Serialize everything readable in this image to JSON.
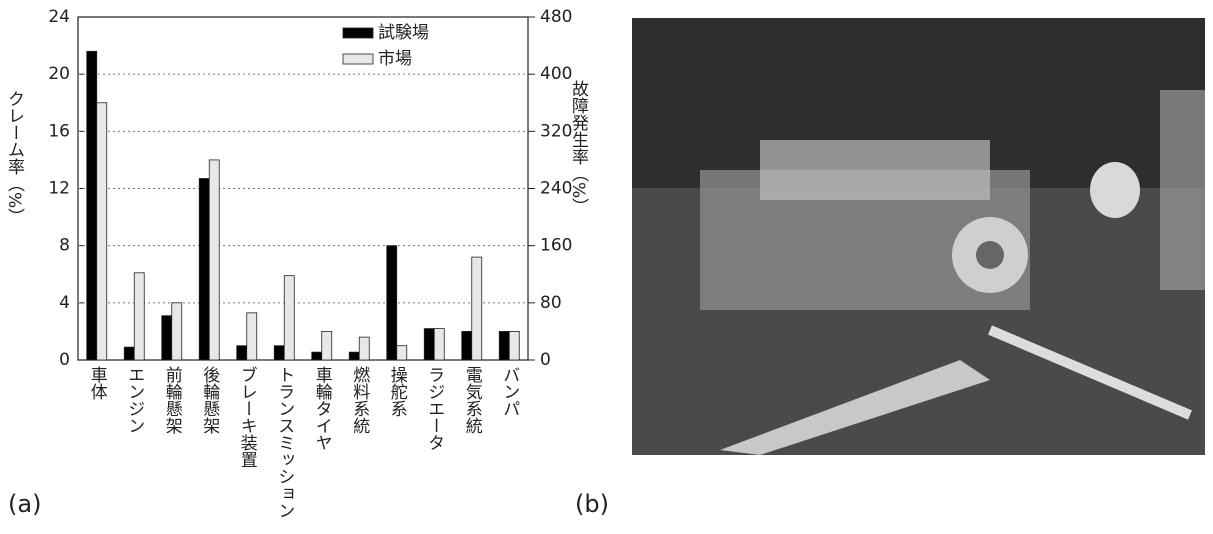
{
  "chart_data": {
    "type": "bar",
    "y_label": "クレーム率（%）",
    "y2_label": "故障発生率（%）",
    "categories": [
      "車体",
      "エンジン",
      "前輪懸架",
      "後輪懸架",
      "ブレーキ装置",
      "トランスミッション",
      "車輪タイヤ",
      "燃料系統",
      "操舵系",
      "ラジエータ",
      "電気系統",
      "バンパ"
    ],
    "series": [
      {
        "name": "試験場",
        "color": "#000000",
        "axis": "y2",
        "values": [
          432,
          18,
          62,
          254,
          20,
          20,
          11,
          11,
          160,
          44,
          40,
          40
        ]
      },
      {
        "name": "市場",
        "color": "#e8e8e8",
        "values": [
          18,
          6.1,
          4,
          14,
          3.3,
          5.9,
          2,
          1.6,
          1,
          2.2,
          7.2,
          2
        ]
      }
    ],
    "ylim": [
      0,
      24
    ],
    "yticks": [
      0,
      4,
      8,
      12,
      16,
      20,
      24
    ],
    "y2lim": [
      0,
      480
    ],
    "y2ticks": [
      0,
      80,
      160,
      240,
      320,
      400,
      480
    ],
    "grid": true,
    "legend": "upper right"
  },
  "panels": {
    "a": "(a)",
    "b": "(b)"
  }
}
